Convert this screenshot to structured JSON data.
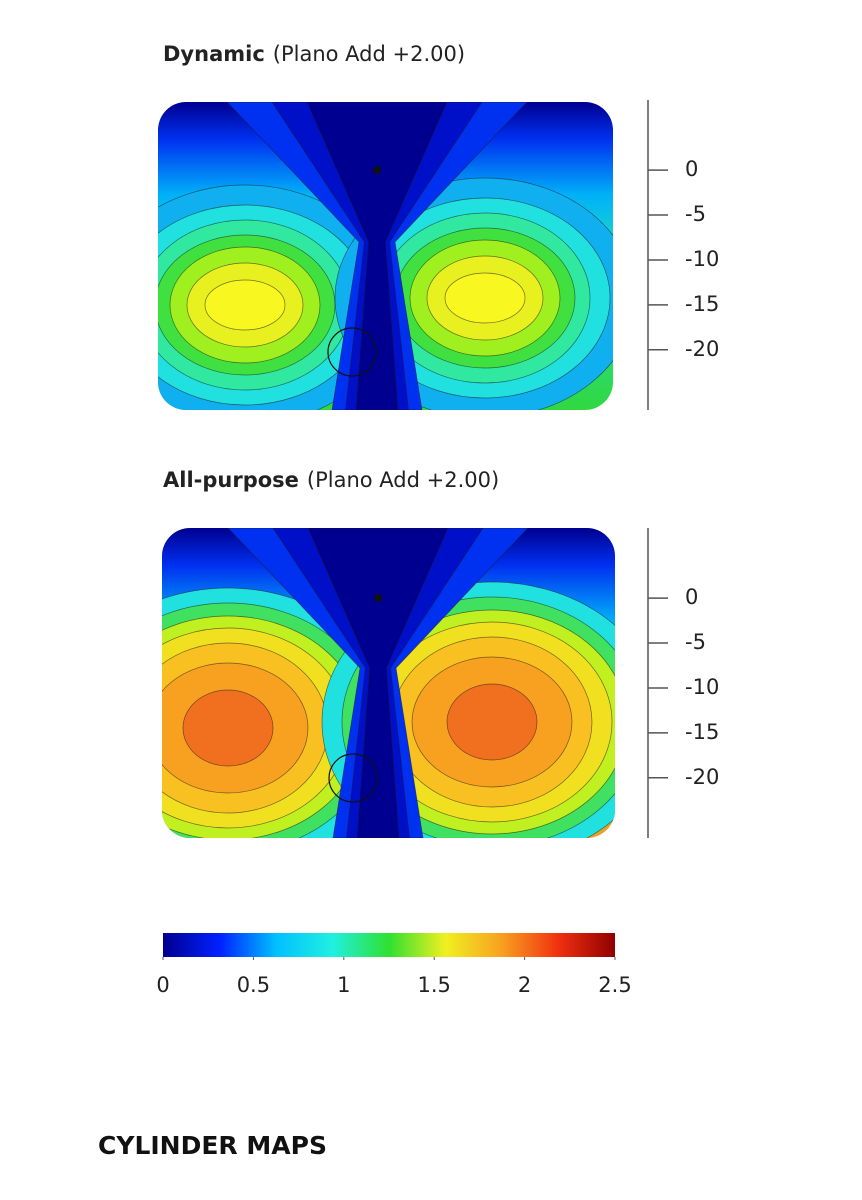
{
  "chart_data": [
    {
      "type": "contour",
      "title": "Dynamic",
      "subtitle": "(Plano Add +2.00)",
      "ylim": [
        -26.7,
        7.8
      ],
      "yticks": [
        0,
        -5,
        -10,
        -15,
        -20
      ]
    },
    {
      "type": "contour",
      "title": "All-purpose",
      "subtitle": "(Plano Add +2.00)",
      "ylim": [
        -26.7,
        7.8
      ],
      "yticks": [
        0,
        -5,
        -10,
        -15,
        -20
      ]
    }
  ],
  "colorbar": {
    "lim": [
      0,
      2.5
    ],
    "ticks": [
      0,
      0.5,
      1,
      1.5,
      2,
      2.5
    ],
    "colors": [
      "#00008f",
      "#0020ff",
      "#00c0ff",
      "#20f0e0",
      "#30e030",
      "#f0f020",
      "#f8a020",
      "#f03010",
      "#900000"
    ]
  },
  "caption": "CYLINDER MAPS"
}
